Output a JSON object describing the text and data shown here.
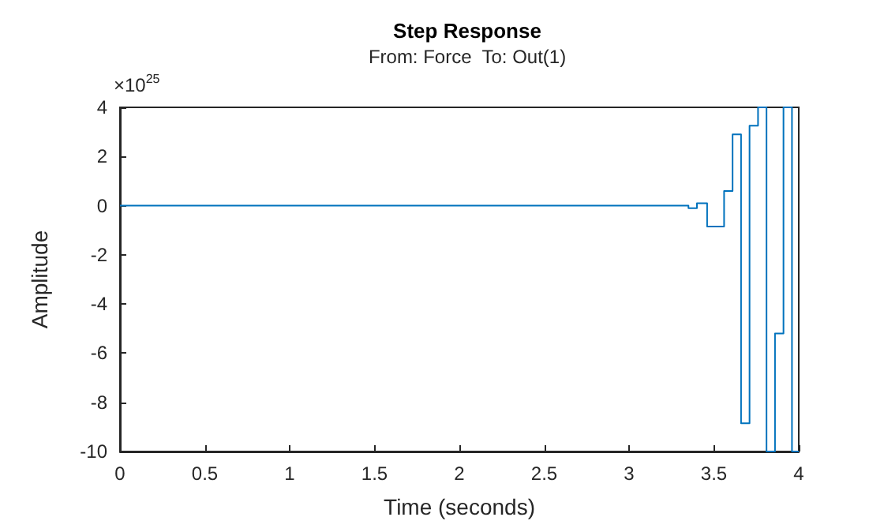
{
  "chart_data": {
    "type": "step",
    "title": "Step Response",
    "subtitle": "From: Force  To: Out(1)",
    "xlabel": "Time (seconds)",
    "ylabel": "Amplitude",
    "annotations": [
      "×10$^{25}$"
    ],
    "series": [
      {
        "color": "#0072bd",
        "x": [
          0,
          3.35,
          3.4,
          3.46,
          3.56,
          3.61,
          3.66,
          3.71,
          3.76,
          3.81,
          3.86,
          3.91,
          3.96,
          4
        ],
        "values": [
          0,
          -0.1,
          0.1,
          -0.85,
          0.6,
          2.9,
          -8.85,
          3.25,
          4,
          -10,
          -5.2,
          4,
          -10,
          -10
        ]
      }
    ],
    "xlim": [
      0,
      4
    ],
    "xticks": [
      0,
      0.5,
      1,
      1.5,
      2,
      2.5,
      3,
      3.5,
      4
    ],
    "ylim": [
      -10,
      4
    ],
    "yticks": [
      -10,
      -8,
      -6,
      -4,
      -2,
      0,
      2,
      4
    ],
    "grid": false
  }
}
